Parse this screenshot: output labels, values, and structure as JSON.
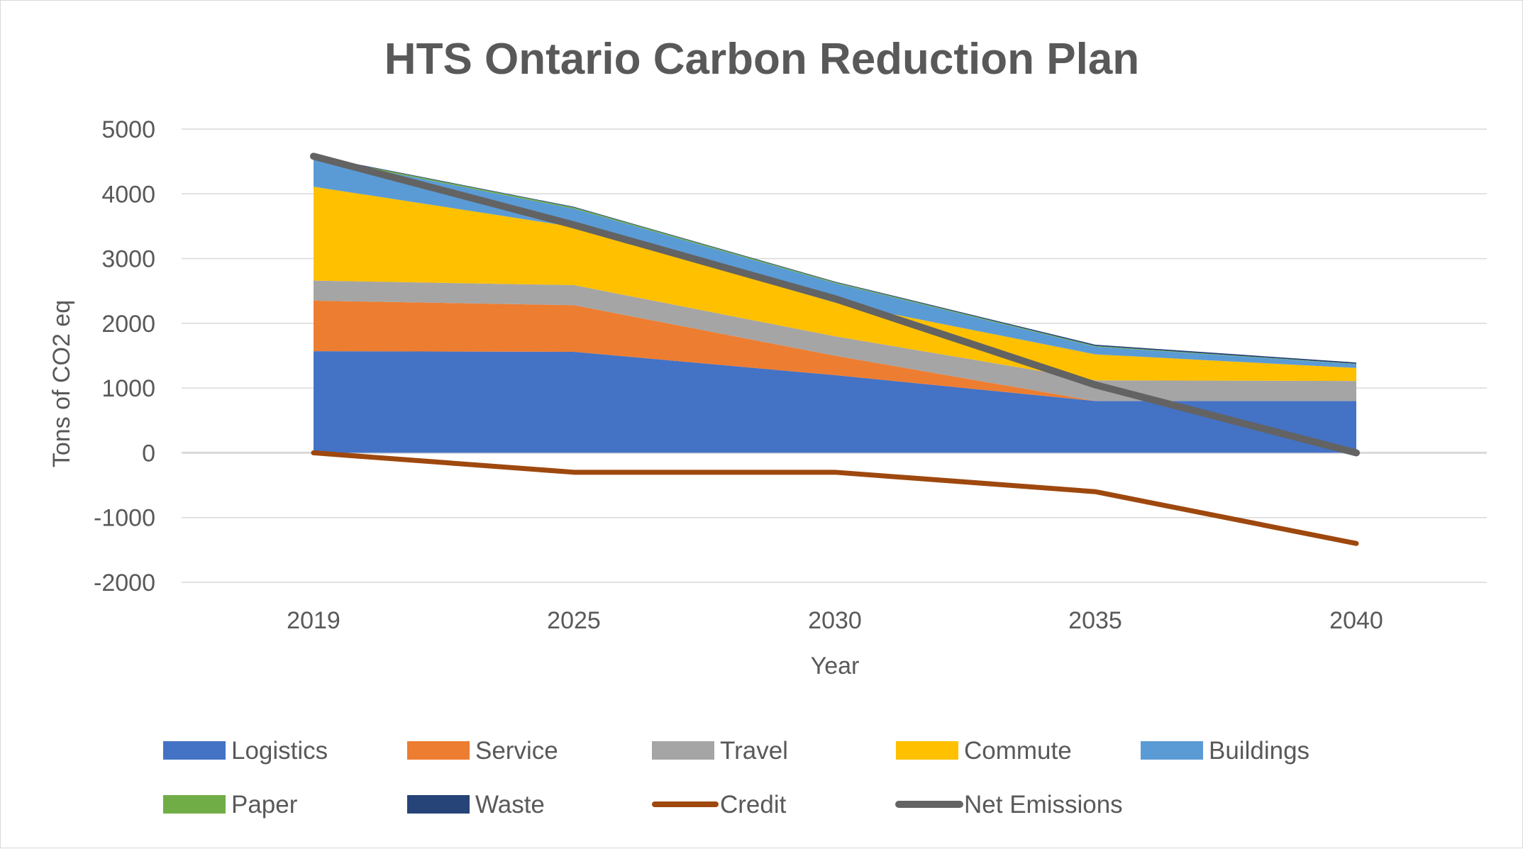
{
  "chart_data": {
    "type": "area",
    "title": "HTS Ontario Carbon Reduction Plan",
    "xlabel": "Year",
    "ylabel": "Tons of CO2 eq",
    "categories": [
      "2019",
      "2025",
      "2030",
      "2035",
      "2040"
    ],
    "ylim": [
      -2000,
      5000
    ],
    "yticks": [
      5000,
      4000,
      3000,
      2000,
      1000,
      0,
      -1000,
      -2000
    ],
    "grid": true,
    "legend_position": "bottom",
    "stacked_series": [
      {
        "name": "Logistics",
        "values": [
          1570,
          1560,
          1200,
          800,
          800
        ],
        "color": "#4472C4"
      },
      {
        "name": "Service",
        "values": [
          780,
          720,
          300,
          0,
          0
        ],
        "color": "#ED7D31"
      },
      {
        "name": "Travel",
        "values": [
          310,
          310,
          300,
          320,
          310
        ],
        "color": "#A5A5A5"
      },
      {
        "name": "Commute",
        "values": [
          1450,
          900,
          520,
          400,
          200
        ],
        "color": "#FFC000"
      },
      {
        "name": "Buildings",
        "values": [
          450,
          280,
          300,
          120,
          60
        ],
        "color": "#5B9BD5"
      },
      {
        "name": "Paper",
        "values": [
          20,
          20,
          15,
          10,
          5
        ],
        "color": "#70AD47"
      },
      {
        "name": "Waste",
        "values": [
          10,
          10,
          10,
          20,
          20
        ],
        "color": "#264478"
      }
    ],
    "line_series": [
      {
        "name": "Credit",
        "values": [
          0,
          -300,
          -300,
          -600,
          -1400
        ],
        "color": "#9E480E"
      },
      {
        "name": "Net Emissions",
        "values": [
          4580,
          3520,
          2380,
          1050,
          0
        ],
        "color": "#636363"
      }
    ]
  }
}
